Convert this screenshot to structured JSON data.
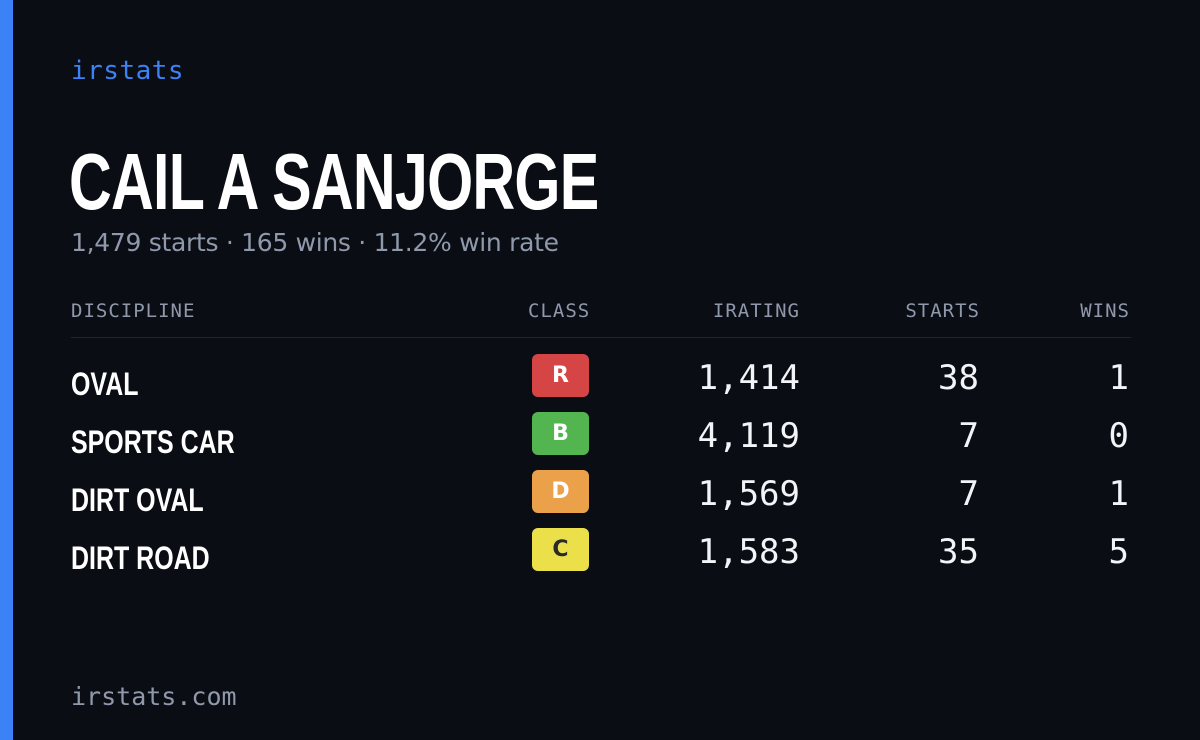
{
  "brand": "irstats",
  "driver": {
    "name": "CAIL A SANJORGE",
    "summary": "1,479 starts · 165 wins · 11.2% win rate"
  },
  "table": {
    "headers": {
      "discipline": "DISCIPLINE",
      "class": "CLASS",
      "irating": "IRATING",
      "starts": "STARTS",
      "wins": "WINS"
    },
    "rows": [
      {
        "discipline": "OVAL",
        "class": "R",
        "class_color": "#d64545",
        "class_text_color": "#ffffff",
        "irating": "1,414",
        "starts": "38",
        "wins": "1"
      },
      {
        "discipline": "SPORTS CAR",
        "class": "B",
        "class_color": "#53b550",
        "class_text_color": "#ffffff",
        "irating": "4,119",
        "starts": "7",
        "wins": "0"
      },
      {
        "discipline": "DIRT OVAL",
        "class": "D",
        "class_color": "#eba14a",
        "class_text_color": "#ffffff",
        "irating": "1,569",
        "starts": "7",
        "wins": "1"
      },
      {
        "discipline": "DIRT ROAD",
        "class": "C",
        "class_color": "#ebe04a",
        "class_text_color": "#2a2a2a",
        "irating": "1,583",
        "starts": "35",
        "wins": "5"
      }
    ]
  },
  "footer": "irstats.com",
  "colors": {
    "accent": "#3b82f6",
    "background": "#0b0d14",
    "muted": "#8f99ab"
  }
}
